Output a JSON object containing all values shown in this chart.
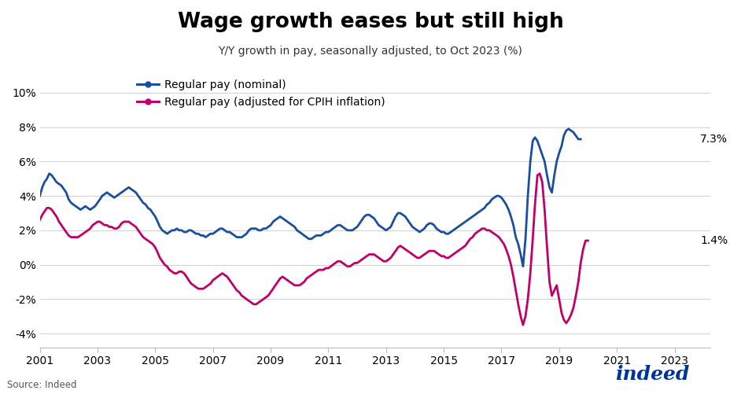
{
  "title": "Wage growth eases but still high",
  "subtitle": "Y/Y growth in pay, seasonally adjusted, to Oct 2023 (%)",
  "source": "Source: Indeed",
  "nominal_label": "Regular pay (nominal)",
  "real_label": "Regular pay (adjusted for CPIH inflation)",
  "nominal_color": "#1a4f9c",
  "real_color": "#c0006a",
  "nominal_end_value": "7.3%",
  "real_end_value": "1.4%",
  "ylim": [
    -4.8,
    11.5
  ],
  "yticks": [
    -4,
    -2,
    0,
    2,
    4,
    6,
    8,
    10
  ],
  "ytick_labels": [
    "-4%",
    "-2%",
    "0%",
    "2%",
    "4%",
    "6%",
    "8%",
    "10%"
  ],
  "background_color": "#ffffff",
  "start_year": 2001,
  "start_month": 1,
  "nominal_data": [
    4.0,
    4.5,
    4.8,
    5.0,
    5.3,
    5.2,
    5.0,
    4.8,
    4.7,
    4.6,
    4.4,
    4.2,
    3.8,
    3.6,
    3.5,
    3.4,
    3.3,
    3.2,
    3.3,
    3.4,
    3.3,
    3.2,
    3.3,
    3.4,
    3.6,
    3.8,
    4.0,
    4.1,
    4.2,
    4.1,
    4.0,
    3.9,
    4.0,
    4.1,
    4.2,
    4.3,
    4.4,
    4.5,
    4.4,
    4.3,
    4.2,
    4.0,
    3.8,
    3.6,
    3.5,
    3.3,
    3.2,
    3.0,
    2.8,
    2.5,
    2.2,
    2.0,
    1.9,
    1.8,
    1.9,
    2.0,
    2.0,
    2.1,
    2.0,
    2.0,
    1.9,
    1.9,
    2.0,
    2.0,
    1.9,
    1.8,
    1.8,
    1.7,
    1.7,
    1.6,
    1.7,
    1.8,
    1.8,
    1.9,
    2.0,
    2.1,
    2.1,
    2.0,
    1.9,
    1.9,
    1.8,
    1.7,
    1.6,
    1.6,
    1.6,
    1.7,
    1.8,
    2.0,
    2.1,
    2.1,
    2.1,
    2.0,
    2.0,
    2.1,
    2.1,
    2.2,
    2.3,
    2.5,
    2.6,
    2.7,
    2.8,
    2.7,
    2.6,
    2.5,
    2.4,
    2.3,
    2.2,
    2.0,
    1.9,
    1.8,
    1.7,
    1.6,
    1.5,
    1.5,
    1.6,
    1.7,
    1.7,
    1.7,
    1.8,
    1.9,
    1.9,
    2.0,
    2.1,
    2.2,
    2.3,
    2.3,
    2.2,
    2.1,
    2.0,
    2.0,
    2.0,
    2.1,
    2.2,
    2.4,
    2.6,
    2.8,
    2.9,
    2.9,
    2.8,
    2.7,
    2.5,
    2.3,
    2.2,
    2.1,
    2.0,
    2.1,
    2.2,
    2.5,
    2.8,
    3.0,
    3.0,
    2.9,
    2.8,
    2.6,
    2.4,
    2.2,
    2.1,
    2.0,
    1.9,
    2.0,
    2.1,
    2.3,
    2.4,
    2.4,
    2.3,
    2.1,
    2.0,
    1.9,
    1.9,
    1.8,
    1.8,
    1.9,
    2.0,
    2.1,
    2.2,
    2.3,
    2.4,
    2.5,
    2.6,
    2.7,
    2.8,
    2.9,
    3.0,
    3.1,
    3.2,
    3.3,
    3.5,
    3.6,
    3.8,
    3.9,
    4.0,
    4.0,
    3.9,
    3.7,
    3.5,
    3.2,
    2.8,
    2.3,
    1.6,
    1.2,
    0.6,
    -0.1,
    1.5,
    4.0,
    6.0,
    7.2,
    7.4,
    7.2,
    6.8,
    6.4,
    6.0,
    5.2,
    4.5,
    4.2,
    5.2,
    6.0,
    6.5,
    6.9,
    7.5,
    7.8,
    7.9,
    7.8,
    7.7,
    7.5,
    7.3,
    7.3
  ],
  "real_data": [
    2.6,
    2.9,
    3.1,
    3.3,
    3.3,
    3.2,
    3.0,
    2.8,
    2.5,
    2.3,
    2.1,
    1.9,
    1.7,
    1.6,
    1.6,
    1.6,
    1.6,
    1.7,
    1.8,
    1.9,
    2.0,
    2.1,
    2.3,
    2.4,
    2.5,
    2.5,
    2.4,
    2.3,
    2.3,
    2.2,
    2.2,
    2.1,
    2.1,
    2.2,
    2.4,
    2.5,
    2.5,
    2.5,
    2.4,
    2.3,
    2.2,
    2.0,
    1.8,
    1.6,
    1.5,
    1.4,
    1.3,
    1.2,
    1.0,
    0.7,
    0.4,
    0.2,
    0.0,
    -0.1,
    -0.3,
    -0.4,
    -0.5,
    -0.5,
    -0.4,
    -0.4,
    -0.5,
    -0.7,
    -0.9,
    -1.1,
    -1.2,
    -1.3,
    -1.4,
    -1.4,
    -1.4,
    -1.3,
    -1.2,
    -1.1,
    -0.9,
    -0.8,
    -0.7,
    -0.6,
    -0.5,
    -0.6,
    -0.7,
    -0.9,
    -1.1,
    -1.3,
    -1.5,
    -1.6,
    -1.8,
    -1.9,
    -2.0,
    -2.1,
    -2.2,
    -2.3,
    -2.3,
    -2.2,
    -2.1,
    -2.0,
    -1.9,
    -1.8,
    -1.6,
    -1.4,
    -1.2,
    -1.0,
    -0.8,
    -0.7,
    -0.8,
    -0.9,
    -1.0,
    -1.1,
    -1.2,
    -1.2,
    -1.2,
    -1.1,
    -1.0,
    -0.8,
    -0.7,
    -0.6,
    -0.5,
    -0.4,
    -0.3,
    -0.3,
    -0.3,
    -0.2,
    -0.2,
    -0.1,
    0.0,
    0.1,
    0.2,
    0.2,
    0.1,
    0.0,
    -0.1,
    -0.1,
    0.0,
    0.1,
    0.1,
    0.2,
    0.3,
    0.4,
    0.5,
    0.6,
    0.6,
    0.6,
    0.5,
    0.4,
    0.3,
    0.2,
    0.2,
    0.3,
    0.4,
    0.6,
    0.8,
    1.0,
    1.1,
    1.0,
    0.9,
    0.8,
    0.7,
    0.6,
    0.5,
    0.4,
    0.4,
    0.5,
    0.6,
    0.7,
    0.8,
    0.8,
    0.8,
    0.7,
    0.6,
    0.5,
    0.5,
    0.4,
    0.4,
    0.5,
    0.6,
    0.7,
    0.8,
    0.9,
    1.0,
    1.1,
    1.3,
    1.5,
    1.6,
    1.8,
    1.9,
    2.0,
    2.1,
    2.1,
    2.0,
    2.0,
    1.9,
    1.8,
    1.7,
    1.6,
    1.4,
    1.2,
    0.9,
    0.5,
    0.0,
    -0.7,
    -1.5,
    -2.3,
    -3.0,
    -3.5,
    -3.0,
    -2.0,
    -0.5,
    1.5,
    3.5,
    5.2,
    5.3,
    4.8,
    3.2,
    1.0,
    -1.0,
    -1.8,
    -1.5,
    -1.2,
    -2.0,
    -2.8,
    -3.2,
    -3.4,
    -3.2,
    -2.9,
    -2.5,
    -1.8,
    -1.0,
    0.1,
    0.9,
    1.4,
    1.4
  ]
}
